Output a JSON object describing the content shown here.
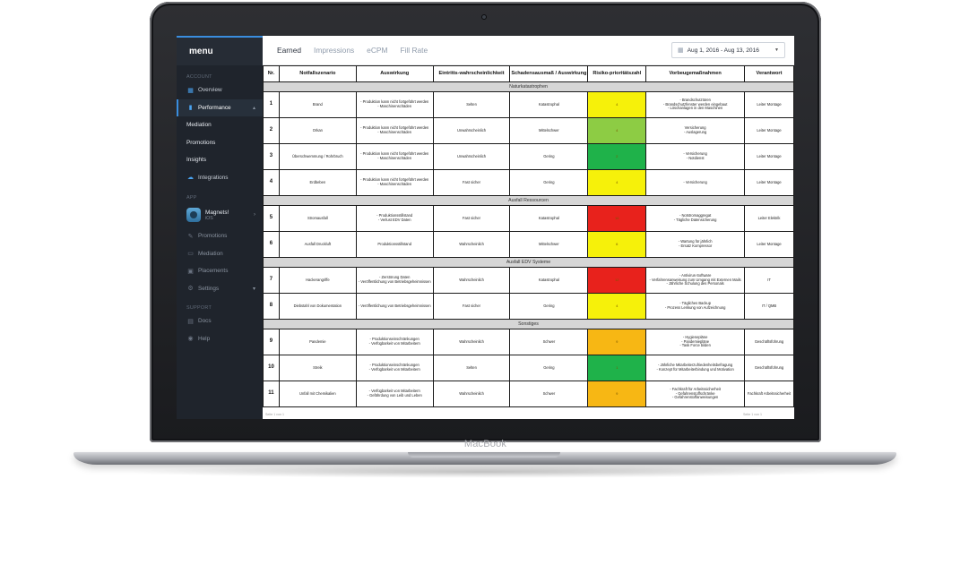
{
  "device": {
    "label": "MacBook"
  },
  "sidebar": {
    "title": "menu",
    "account_label": "ACCOUNT",
    "overview": "Overview",
    "performance": "Performance",
    "mediation": "Mediation",
    "promotions": "Promotions",
    "insights": "Insights",
    "integrations": "Integrations",
    "app_label": "APP",
    "app_name": "Magnets!",
    "app_os": "iOS",
    "app_promotions": "Promotions",
    "app_mediation": "Mediation",
    "app_placements": "Placements",
    "app_settings": "Settings",
    "support_label": "SUPPORT",
    "docs": "Docs",
    "help": "Help"
  },
  "tabs": [
    "Earned",
    "Impressions",
    "eCPM",
    "Fill Rate"
  ],
  "date_range": "Aug 1, 2016  - Aug 13, 2016",
  "colors": {
    "red": "#e8221c",
    "yellow": "#f6f10a",
    "orange": "#f7b714",
    "green": "#1fb24a",
    "light_green": "#8dcc44",
    "accent": "#3a8dde"
  },
  "table": {
    "headers": [
      "Nr.",
      "Notfallszenario",
      "Auswirkung",
      "Eintritts-wahrscheinlichkeit",
      "Schadensausmaß / Auswirkung",
      "Risiko-prioritätszahl",
      "Vorbeugemaßnahmen",
      "Verantwort"
    ],
    "sections": [
      {
        "title": "Naturkatastrophen",
        "rows": [
          {
            "nr": "1",
            "szenario": "Brand",
            "auswirkung": "- Produktion kann nicht fortgeführt werden\n- Maschinenschäden",
            "eintritt": "Selten",
            "schaden": "Katastrophal",
            "rpz": "4",
            "color": "#f6f10a",
            "vorbeugung": "- Brandschutztüren\n- Brandschutzfenster werden eingebaut\n- Löschanlagen in den Maschinen",
            "verantwortlich": "Leiter Montage"
          },
          {
            "nr": "2",
            "szenario": "Orkan",
            "auswirkung": "- Produktion kann nicht fortgeführt werden\n- Maschinenschäden",
            "eintritt": "Unwahrscheinlich",
            "schaden": "Mittelschwer",
            "rpz": "4",
            "color": "#8dcc44",
            "vorbeugung": "Versicherung\n- Auslagerung",
            "verantwortlich": "Leiter Montage"
          },
          {
            "nr": "3",
            "szenario": "Überschwemmung / Rohrbruch",
            "auswirkung": "- Produktion kann nicht fortgeführt werden\n- Maschinenschäden",
            "eintritt": "Unwahrscheinlich",
            "schaden": "Gering",
            "rpz": "2",
            "color": "#1fb24a",
            "vorbeugung": "- Versicherung\n- Notdienst",
            "verantwortlich": "Leiter Montage"
          },
          {
            "nr": "4",
            "szenario": "Erdbeben",
            "auswirkung": "- Produktion kann nicht fortgeführt werden\n- Maschinenschäden",
            "eintritt": "Fast sicher",
            "schaden": "Gering",
            "rpz": "4",
            "color": "#f6f10a",
            "vorbeugung": "- Versicherung",
            "verantwortlich": "Leiter Montage"
          }
        ]
      },
      {
        "title": "Ausfall Ressourcen",
        "rows": [
          {
            "nr": "5",
            "szenario": "Stromausfall",
            "auswirkung": "- Produktionsstillstand\n- Verlust EDV Daten",
            "eintritt": "Fast sicher",
            "schaden": "Katastrophal",
            "rpz": "16",
            "color": "#e8221c",
            "vorbeugung": "- Notstromaggregat\n- Tägliche Datensicherung",
            "verantwortlich": "Leiter Elektrik"
          },
          {
            "nr": "6",
            "szenario": "Ausfall Druckluft",
            "auswirkung": "Produktionsstillstand",
            "eintritt": "Wahrscheinlich",
            "schaden": "Mittelschwer",
            "rpz": "6",
            "color": "#f6f10a",
            "vorbeugung": "- Wartung für jährlich\n- Ersatz Kompressor",
            "verantwortlich": "Leiter Montage"
          }
        ]
      },
      {
        "title": "Ausfall EDV Systeme",
        "rows": [
          {
            "nr": "7",
            "szenario": "Hackerangriffe",
            "auswirkung": "- Zerstörung Daten\n- Veröffentlichung von Betriebsgeheimnissen",
            "eintritt": "Wahrscheinlich",
            "schaden": "Katastrophal",
            "rpz": "12",
            "color": "#e8221c",
            "vorbeugung": "- Antivirus-Software\n- Verfahrensanweisung zum Umgang mit Externen Mails\n- Jährliche Schulung des Personals",
            "verantwortlich": "IT"
          },
          {
            "nr": "8",
            "szenario": "Diebstahl von Dokumentation",
            "auswirkung": "- Veröffentlichung von Betriebsgeheimnissen",
            "eintritt": "Fast sicher",
            "schaden": "Gering",
            "rpz": "4",
            "color": "#f6f10a",
            "vorbeugung": "- Tägliches Backup\n- Prozess Lenkung von Aufzeichnung",
            "verantwortlich": "IT / QMB"
          }
        ]
      },
      {
        "title": "Sonstiges",
        "rows": [
          {
            "nr": "9",
            "szenario": "Pandemie",
            "auswirkung": "- Produktionseinschränkungen\n- Verfügbarkeit von Mitarbeitern",
            "eintritt": "Wahrscheinlich",
            "schaden": "Schwer",
            "rpz": "9",
            "color": "#f7b714",
            "vorbeugung": "- Hygienepläne\n- Pandemiepläne\n- Task Force bilden",
            "verantwortlich": "Geschäftsführung"
          },
          {
            "nr": "10",
            "szenario": "Streik",
            "auswirkung": "- Produktionseinschränkungen\n- Verfügbarkeit von Mitarbeitern",
            "eintritt": "Selten",
            "schaden": "Gering",
            "rpz": "1",
            "color": "#1fb24a",
            "vorbeugung": "- Jährliche Mitarbeiterzufriedenheitsbefragung\n- Konzept für Mitarbeiterbindung und Motivation",
            "verantwortlich": "Geschäftsführung"
          },
          {
            "nr": "11",
            "szenario": "Unfall mit Chemikalien",
            "auswirkung": "- Verfügbarkeit von Mitarbeitern\n- Gefährdung von Leib und Leben",
            "eintritt": "Wahrscheinlich",
            "schaden": "Schwer",
            "rpz": "9",
            "color": "#f7b714",
            "vorbeugung": "- Fachkraft für Arbeitssicherheit\n- Gefahrenstoffschränke\n- Gefahrenstoffanweisungen",
            "verantwortlich": "Fachkraft Arbeitssicherheit"
          }
        ]
      }
    ],
    "footer_left": "Seite 1 von 1",
    "footer_right": "Seite 1 von 1"
  }
}
